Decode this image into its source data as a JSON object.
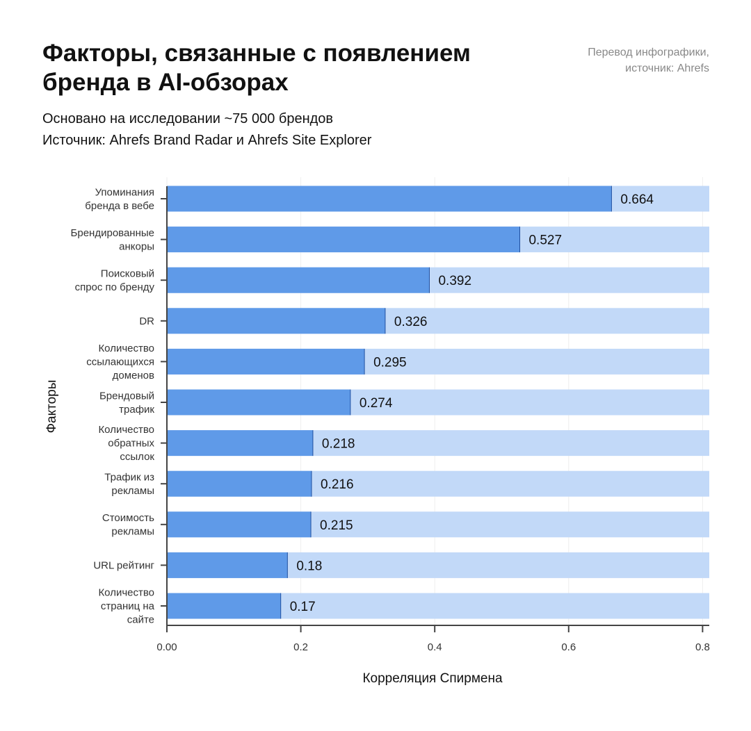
{
  "header": {
    "title": "Факторы, связанные с появлением бренда в AI-обзорах",
    "note_line1": "Перевод инфографики,",
    "note_line2": "источник: Ahrefs",
    "subtitle_line1": "Основано на исследовании ~75 000 брендов",
    "subtitle_line2": "Источник: Ahrefs Brand Radar и Ahrefs Site Explorer"
  },
  "chart_data": {
    "type": "bar",
    "orientation": "horizontal",
    "xlabel": "Корреляция Спирмена",
    "ylabel": "Факторы",
    "xlim": [
      0,
      0.81
    ],
    "xticks": [
      "0.00",
      "0.2",
      "0.4",
      "0.6",
      "0.8"
    ],
    "xtick_values": [
      0,
      0.2,
      0.4,
      0.6,
      0.8
    ],
    "grid": "vertical",
    "colors": {
      "bar": "#5f9ae8",
      "background_bar": "#c2d9f8",
      "bar_edge": "#1f4fa0"
    },
    "categories": [
      [
        "Упоминания",
        "бренда в вебе"
      ],
      [
        "Брендированные",
        "анкоры"
      ],
      [
        "Поисковый",
        "спрос по бренду"
      ],
      [
        "DR"
      ],
      [
        "Количество",
        "ссылающихся",
        "доменов"
      ],
      [
        "Брендовый",
        "трафик"
      ],
      [
        "Количество",
        "обратных",
        "ссылок"
      ],
      [
        "Трафик из",
        "рекламы"
      ],
      [
        "Стоимость",
        "рекламы"
      ],
      [
        "URL рейтинг"
      ],
      [
        "Количество",
        "страниц на",
        "сайте"
      ]
    ],
    "values": [
      0.664,
      0.527,
      0.392,
      0.326,
      0.295,
      0.274,
      0.218,
      0.216,
      0.215,
      0.18,
      0.17
    ],
    "data_labels": [
      "0.664",
      "0.527",
      "0.392",
      "0.326",
      "0.295",
      "0.274",
      "0.218",
      "0.216",
      "0.215",
      "0.18",
      "0.17"
    ]
  }
}
